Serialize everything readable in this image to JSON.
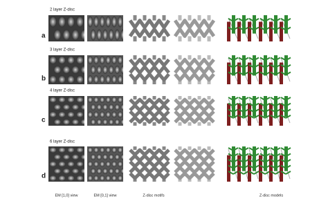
{
  "panels": [
    {
      "label": "a",
      "title": "2 layer Z-disc"
    },
    {
      "label": "b",
      "title": "3 layer Z-disc"
    },
    {
      "label": "c",
      "title": "4 layer Z-disc"
    },
    {
      "label": "d",
      "title": "6 layer Z-disc"
    }
  ],
  "columns": [
    "EM [1,0] view",
    "EM [0,1] view",
    "Z-disc motifs",
    "Z-disc models"
  ]
}
